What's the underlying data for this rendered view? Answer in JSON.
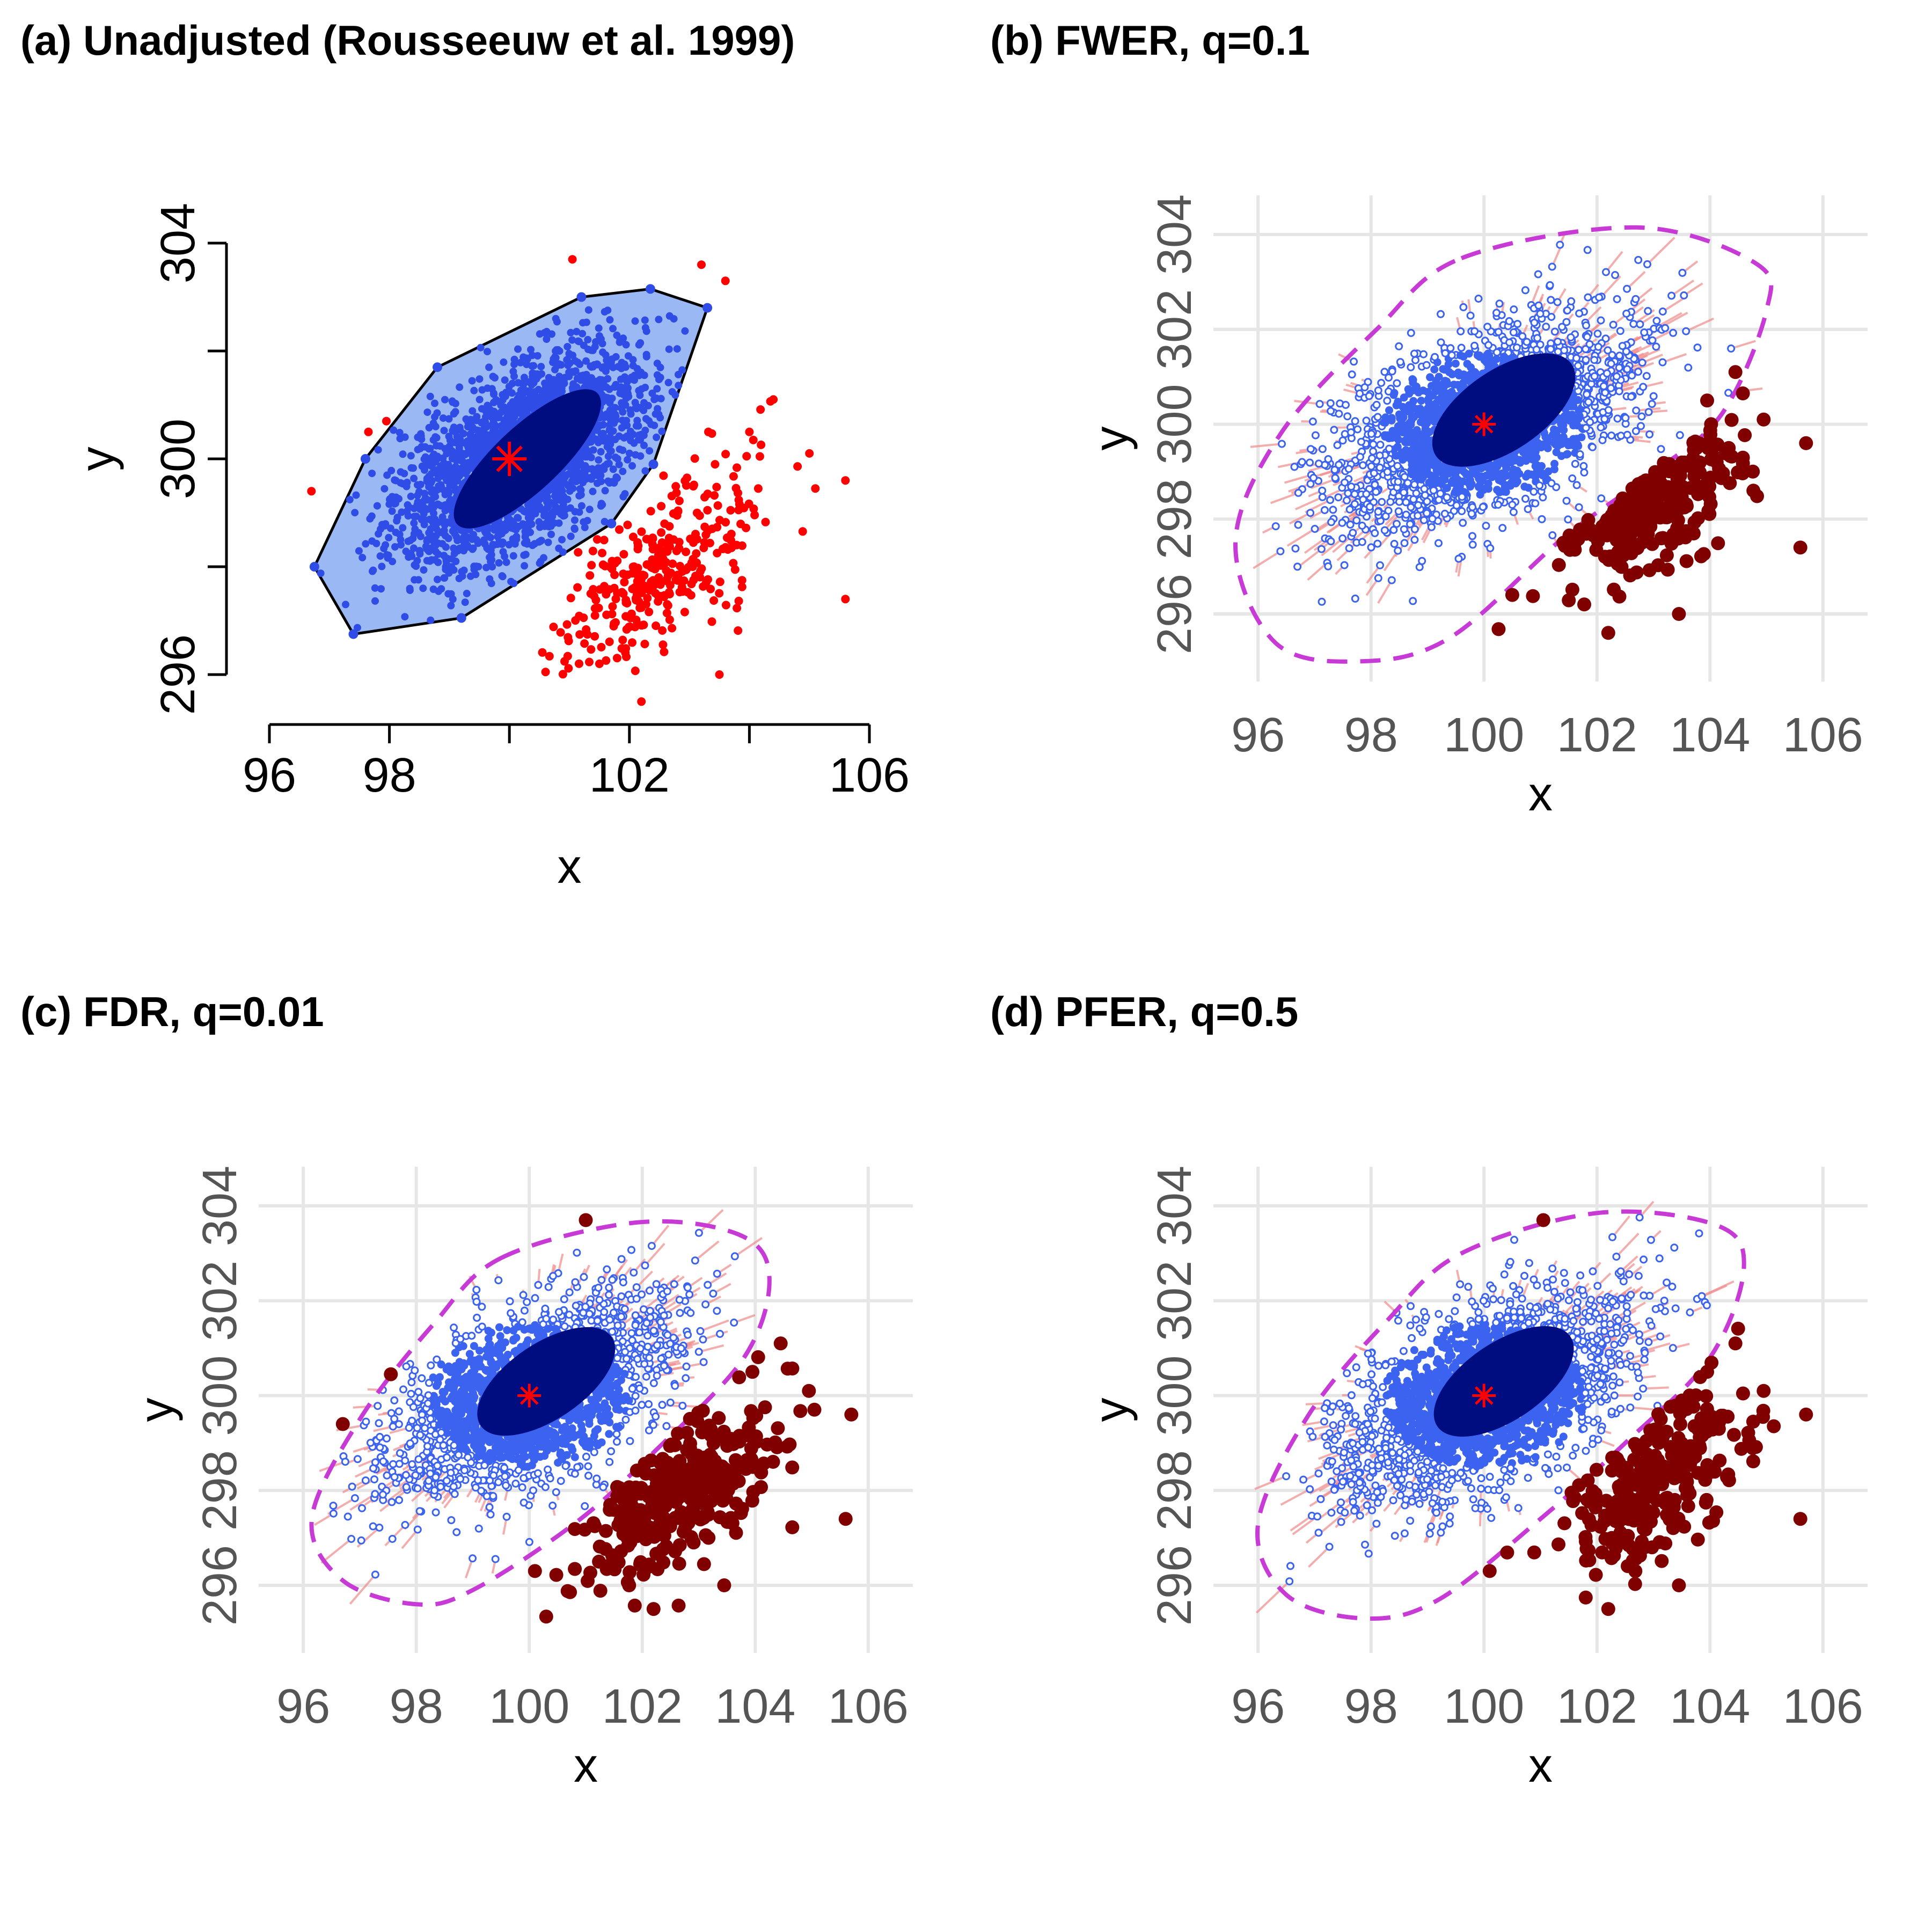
{
  "chart_data": [
    {
      "id": "a",
      "type": "scatter",
      "style": "base",
      "title": "(a) Unadjusted (Rousseeuw et al. 1999)",
      "xlabel": "x",
      "ylabel": "y",
      "xlim": [
        96,
        106
      ],
      "ylim": [
        296,
        304
      ],
      "xticks": [
        96,
        98,
        100,
        102,
        104,
        106
      ],
      "xtick_labels": [
        "96",
        "98",
        "",
        "102",
        "",
        "106"
      ],
      "yticks": [
        296,
        298,
        300,
        302,
        304
      ],
      "ytick_labels": [
        "296",
        "",
        "300",
        "",
        "304"
      ],
      "grid": false,
      "colors": {
        "hull_fill": "#9ab9f4",
        "hull_edge": "#000000",
        "inner_points": "#2f4de6",
        "core": "#000d80",
        "outliers": "#ff0000",
        "center": "#ff0000"
      },
      "hull": [
        [
          96.75,
          298.0
        ],
        [
          97.4,
          296.75
        ],
        [
          99.2,
          297.05
        ],
        [
          101.7,
          298.8
        ],
        [
          102.4,
          299.9
        ],
        [
          103.3,
          302.8
        ],
        [
          102.35,
          303.15
        ],
        [
          101.2,
          303.0
        ],
        [
          98.8,
          301.7
        ],
        [
          97.6,
          300.0
        ]
      ],
      "core_ellipse": {
        "cx": 100.3,
        "cy": 300.0,
        "rx": 1.6,
        "ry": 0.6,
        "angle_deg": 43
      },
      "inner_cloud": {
        "n": 2400,
        "cx": 100.2,
        "cy": 300.0,
        "sx": 1.05,
        "sy": 1.0,
        "rho": 0.55
      },
      "outlier_cloud": {
        "n": 320,
        "cx": 102.6,
        "cy": 298.0,
        "sx": 0.85,
        "sy": 1.0,
        "rho": 0.6
      },
      "extra_outliers": [
        [
          101.05,
          303.7
        ],
        [
          103.2,
          303.6
        ],
        [
          103.6,
          303.3
        ],
        [
          104.4,
          301.1
        ],
        [
          104.0,
          300.5
        ],
        [
          105.0,
          300.1
        ],
        [
          105.6,
          299.6
        ],
        [
          105.6,
          297.4
        ],
        [
          103.5,
          296.0
        ],
        [
          102.2,
          295.5
        ],
        [
          96.7,
          299.4
        ],
        [
          97.65,
          300.5
        ],
        [
          97.95,
          300.7
        ],
        [
          101.5,
          296.2
        ]
      ],
      "center": [
        100,
        300
      ]
    },
    {
      "id": "b",
      "type": "scatter",
      "style": "gg",
      "title": "(b) FWER, q=0.1",
      "xlabel": "x",
      "ylabel": "y",
      "xlim": [
        95.4,
        106.6
      ],
      "ylim": [
        294.8,
        304.6
      ],
      "xticks": [
        96,
        98,
        100,
        102,
        104,
        106
      ],
      "xtick_labels": [
        "96",
        "98",
        "100",
        "102",
        "104",
        "106"
      ],
      "yticks": [
        296,
        298,
        300,
        302,
        304
      ],
      "ytick_labels": [
        "296",
        "298",
        "300",
        "302",
        "304"
      ],
      "grid": true,
      "colors": {
        "boundary": "#c73ad6",
        "core": "#000d80",
        "inner_points": "#3b63f0",
        "segments": "#f08a8a",
        "outliers": "#800000",
        "center": "#ff0000"
      },
      "boundary": [
        [
          99.6,
          303.5
        ],
        [
          102.7,
          304.15
        ],
        [
          104.8,
          303.4
        ],
        [
          105.0,
          302.4
        ],
        [
          104.2,
          300.2
        ],
        [
          102.9,
          298.9
        ],
        [
          101.4,
          297.6
        ],
        [
          99.4,
          295.5
        ],
        [
          97.8,
          295.0
        ],
        [
          96.3,
          295.4
        ],
        [
          95.6,
          297.5
        ],
        [
          96.4,
          299.8
        ],
        [
          98.1,
          302.0
        ]
      ],
      "core_ellipse": {
        "cx": 100.35,
        "cy": 300.3,
        "rx": 1.45,
        "ry": 0.85,
        "angle_deg": 34
      },
      "inner_cloud": {
        "n": 2200,
        "cx": 100.0,
        "cy": 300.0,
        "sx": 1.35,
        "sy": 1.1,
        "rho": 0.55
      },
      "outlier_cloud": {
        "n": 240,
        "cx": 103.0,
        "cy": 298.4,
        "sx": 0.85,
        "sy": 0.9,
        "rho": 0.6
      },
      "extra_outliers": [
        [
          104.45,
          301.1
        ],
        [
          103.95,
          300.5
        ],
        [
          104.95,
          300.1
        ],
        [
          105.7,
          299.6
        ],
        [
          105.6,
          297.4
        ],
        [
          103.45,
          296.0
        ],
        [
          102.2,
          295.6
        ],
        [
          100.5,
          296.4
        ]
      ],
      "center": [
        100,
        300
      ]
    },
    {
      "id": "c",
      "type": "scatter",
      "style": "gg",
      "title": "(c) FDR, q=0.01",
      "xlabel": "x",
      "ylabel": "y",
      "xlim": [
        95.4,
        106.6
      ],
      "ylim": [
        294.8,
        304.6
      ],
      "xticks": [
        96,
        98,
        100,
        102,
        104,
        106
      ],
      "xtick_labels": [
        "96",
        "98",
        "100",
        "102",
        "104",
        "106"
      ],
      "yticks": [
        296,
        298,
        300,
        302,
        304
      ],
      "ytick_labels": [
        "296",
        "298",
        "300",
        "302",
        "304"
      ],
      "grid": true,
      "colors": {
        "boundary": "#c73ad6",
        "core": "#000d80",
        "inner_points": "#3b63f0",
        "segments": "#f08a8a",
        "outliers": "#800000",
        "center": "#ff0000"
      },
      "boundary": [
        [
          99.5,
          302.9
        ],
        [
          101.9,
          303.65
        ],
        [
          103.7,
          303.4
        ],
        [
          104.25,
          302.5
        ],
        [
          103.8,
          300.8
        ],
        [
          102.2,
          298.8
        ],
        [
          100.8,
          297.3
        ],
        [
          99.0,
          295.9
        ],
        [
          98.0,
          295.6
        ],
        [
          96.7,
          296.1
        ],
        [
          96.15,
          297.4
        ],
        [
          97.0,
          299.5
        ],
        [
          98.3,
          301.5
        ]
      ],
      "core_ellipse": {
        "cx": 100.3,
        "cy": 300.3,
        "rx": 1.4,
        "ry": 0.8,
        "angle_deg": 34
      },
      "inner_cloud": {
        "n": 2100,
        "cx": 100.0,
        "cy": 300.0,
        "sx": 1.25,
        "sy": 1.05,
        "rho": 0.55
      },
      "outlier_cloud": {
        "n": 300,
        "cx": 102.7,
        "cy": 298.0,
        "sx": 0.9,
        "sy": 0.95,
        "rho": 0.6
      },
      "extra_outliers": [
        [
          101.0,
          303.7
        ],
        [
          96.7,
          299.4
        ],
        [
          97.55,
          300.45
        ],
        [
          104.45,
          301.1
        ],
        [
          103.95,
          300.5
        ],
        [
          104.95,
          300.1
        ],
        [
          105.7,
          299.6
        ],
        [
          105.6,
          297.4
        ],
        [
          103.45,
          296.0
        ],
        [
          102.2,
          295.5
        ],
        [
          100.1,
          296.3
        ]
      ],
      "center": [
        100,
        300
      ]
    },
    {
      "id": "d",
      "type": "scatter",
      "style": "gg",
      "title": "(d) PFER, q=0.5",
      "xlabel": "x",
      "ylabel": "y",
      "xlim": [
        95.4,
        106.6
      ],
      "ylim": [
        294.8,
        304.6
      ],
      "xticks": [
        96,
        98,
        100,
        102,
        104,
        106
      ],
      "xtick_labels": [
        "96",
        "98",
        "100",
        "102",
        "104",
        "106"
      ],
      "yticks": [
        296,
        298,
        300,
        302,
        304
      ],
      "ytick_labels": [
        "296",
        "298",
        "300",
        "302",
        "304"
      ],
      "grid": true,
      "colors": {
        "boundary": "#c73ad6",
        "core": "#000d80",
        "inner_points": "#3b63f0",
        "segments": "#f08a8a",
        "outliers": "#800000",
        "center": "#ff0000"
      },
      "boundary": [
        [
          99.6,
          303.0
        ],
        [
          102.0,
          303.85
        ],
        [
          104.1,
          303.6
        ],
        [
          104.6,
          302.7
        ],
        [
          104.0,
          300.8
        ],
        [
          102.5,
          299.0
        ],
        [
          101.0,
          297.4
        ],
        [
          99.2,
          295.7
        ],
        [
          97.9,
          295.3
        ],
        [
          96.5,
          295.8
        ],
        [
          96.0,
          297.3
        ],
        [
          96.9,
          299.6
        ],
        [
          98.3,
          301.6
        ]
      ],
      "core_ellipse": {
        "cx": 100.35,
        "cy": 300.3,
        "rx": 1.42,
        "ry": 0.82,
        "angle_deg": 34
      },
      "inner_cloud": {
        "n": 2150,
        "cx": 100.0,
        "cy": 300.0,
        "sx": 1.3,
        "sy": 1.08,
        "rho": 0.55
      },
      "outlier_cloud": {
        "n": 270,
        "cx": 102.9,
        "cy": 298.2,
        "sx": 0.88,
        "sy": 0.92,
        "rho": 0.6
      },
      "extra_outliers": [
        [
          101.05,
          303.7
        ],
        [
          104.45,
          301.1
        ],
        [
          103.95,
          300.5
        ],
        [
          104.95,
          300.1
        ],
        [
          105.7,
          299.6
        ],
        [
          105.6,
          297.4
        ],
        [
          103.45,
          296.0
        ],
        [
          102.2,
          295.5
        ],
        [
          100.1,
          296.3
        ]
      ],
      "center": [
        100,
        300
      ]
    }
  ]
}
